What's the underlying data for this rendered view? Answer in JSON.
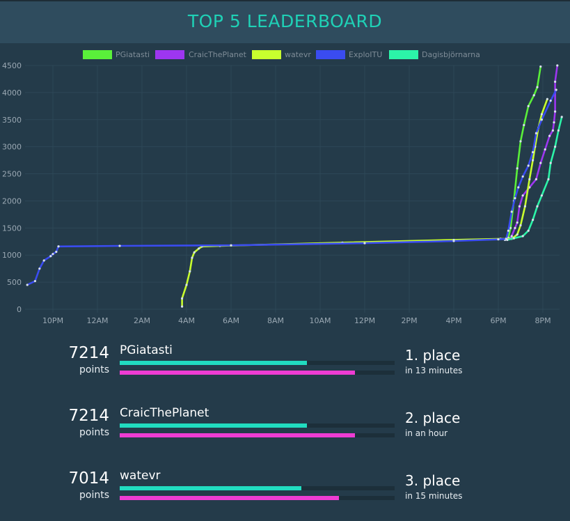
{
  "header": {
    "title": "TOP 5 LEADERBOARD"
  },
  "chart_data": {
    "type": "line",
    "title": "",
    "xlabel": "",
    "ylabel": "",
    "ylim": [
      0,
      4500
    ],
    "y_ticks": [
      0,
      500,
      1000,
      1500,
      2000,
      2500,
      3000,
      3500,
      4000,
      4500
    ],
    "x_axis": {
      "range_hours": [
        20.75,
        44.75
      ],
      "tick_hours": [
        22,
        24,
        26,
        28,
        30,
        32,
        34,
        36,
        38,
        40,
        42,
        44
      ],
      "tick_labels": [
        "10PM",
        "12AM",
        "2AM",
        "4AM",
        "6AM",
        "8AM",
        "10AM",
        "12PM",
        "2PM",
        "4PM",
        "6PM",
        "8PM"
      ]
    },
    "grid": true,
    "legend_position": "top",
    "series": [
      {
        "name": "PGiatasti",
        "color": "#5af03a",
        "points": [
          [
            42.3,
            1280
          ],
          [
            42.45,
            1320
          ],
          [
            42.55,
            1500
          ],
          [
            42.7,
            2000
          ],
          [
            42.85,
            2600
          ],
          [
            43.0,
            3100
          ],
          [
            43.15,
            3400
          ],
          [
            43.35,
            3750
          ],
          [
            43.6,
            3950
          ],
          [
            43.75,
            4100
          ],
          [
            43.9,
            4480
          ]
        ]
      },
      {
        "name": "CraicThePlanet",
        "color": "#9d36f0",
        "points": [
          [
            42.3,
            1290
          ],
          [
            42.5,
            1300
          ],
          [
            42.6,
            1350
          ],
          [
            42.75,
            1500
          ],
          [
            42.85,
            1600
          ],
          [
            42.95,
            1900
          ],
          [
            43.1,
            2100
          ],
          [
            43.4,
            2250
          ],
          [
            43.7,
            2400
          ],
          [
            43.9,
            2700
          ],
          [
            44.1,
            2950
          ],
          [
            44.3,
            3200
          ],
          [
            44.45,
            3300
          ],
          [
            44.5,
            3450
          ],
          [
            44.55,
            3650
          ],
          [
            44.55,
            4200
          ],
          [
            44.65,
            4500
          ]
        ]
      },
      {
        "name": "watevr",
        "color": "#c8ff2e",
        "points": [
          [
            27.8,
            50
          ],
          [
            27.8,
            200
          ],
          [
            28.0,
            450
          ],
          [
            28.15,
            700
          ],
          [
            28.25,
            950
          ],
          [
            28.35,
            1050
          ],
          [
            28.55,
            1120
          ],
          [
            28.7,
            1160
          ],
          [
            29.5,
            1170
          ],
          [
            35.0,
            1230
          ],
          [
            40.0,
            1280
          ],
          [
            42.1,
            1300
          ],
          [
            42.6,
            1300
          ],
          [
            42.85,
            1380
          ],
          [
            43.0,
            1550
          ],
          [
            43.2,
            1900
          ],
          [
            43.4,
            2400
          ],
          [
            43.55,
            2750
          ],
          [
            43.65,
            3000
          ],
          [
            43.8,
            3350
          ],
          [
            43.95,
            3600
          ],
          [
            44.2,
            3880
          ]
        ]
      },
      {
        "name": "ExploITU",
        "color": "#3a4cf0",
        "points": [
          [
            20.85,
            450
          ],
          [
            21.2,
            520
          ],
          [
            21.4,
            750
          ],
          [
            21.6,
            900
          ],
          [
            21.9,
            980
          ],
          [
            22.0,
            1020
          ],
          [
            22.15,
            1060
          ],
          [
            22.25,
            1160
          ],
          [
            25.0,
            1170
          ],
          [
            30.0,
            1180
          ],
          [
            36.0,
            1220
          ],
          [
            40.0,
            1260
          ],
          [
            42.0,
            1290
          ],
          [
            42.35,
            1300
          ],
          [
            42.45,
            1450
          ],
          [
            42.6,
            1800
          ],
          [
            42.75,
            2050
          ],
          [
            42.9,
            2250
          ],
          [
            43.1,
            2450
          ],
          [
            43.35,
            2650
          ],
          [
            43.55,
            2900
          ],
          [
            43.7,
            3250
          ],
          [
            43.95,
            3500
          ],
          [
            44.35,
            3850
          ],
          [
            44.6,
            4050
          ]
        ]
      },
      {
        "name": "Dagisbjörnarna",
        "color": "#2cf4a8",
        "points": [
          [
            42.4,
            1280
          ],
          [
            42.7,
            1310
          ],
          [
            43.1,
            1350
          ],
          [
            43.35,
            1450
          ],
          [
            43.55,
            1650
          ],
          [
            43.75,
            1900
          ],
          [
            43.95,
            2100
          ],
          [
            44.25,
            2400
          ],
          [
            44.35,
            2700
          ],
          [
            44.55,
            3000
          ],
          [
            44.7,
            3300
          ],
          [
            44.85,
            3550
          ]
        ]
      }
    ]
  },
  "leaderboard": [
    {
      "points": "7214",
      "points_label": "points",
      "name": "PGiatasti",
      "place": "1. place",
      "when": "in 13 minutes",
      "bar_teal": 0.68,
      "bar_pink": 0.855
    },
    {
      "points": "7214",
      "points_label": "points",
      "name": "CraicThePlanet",
      "place": "2. place",
      "when": "in an hour",
      "bar_teal": 0.68,
      "bar_pink": 0.855
    },
    {
      "points": "7014",
      "points_label": "points",
      "name": "watevr",
      "place": "3. place",
      "when": "in 15 minutes",
      "bar_teal": 0.662,
      "bar_pink": 0.797
    }
  ]
}
